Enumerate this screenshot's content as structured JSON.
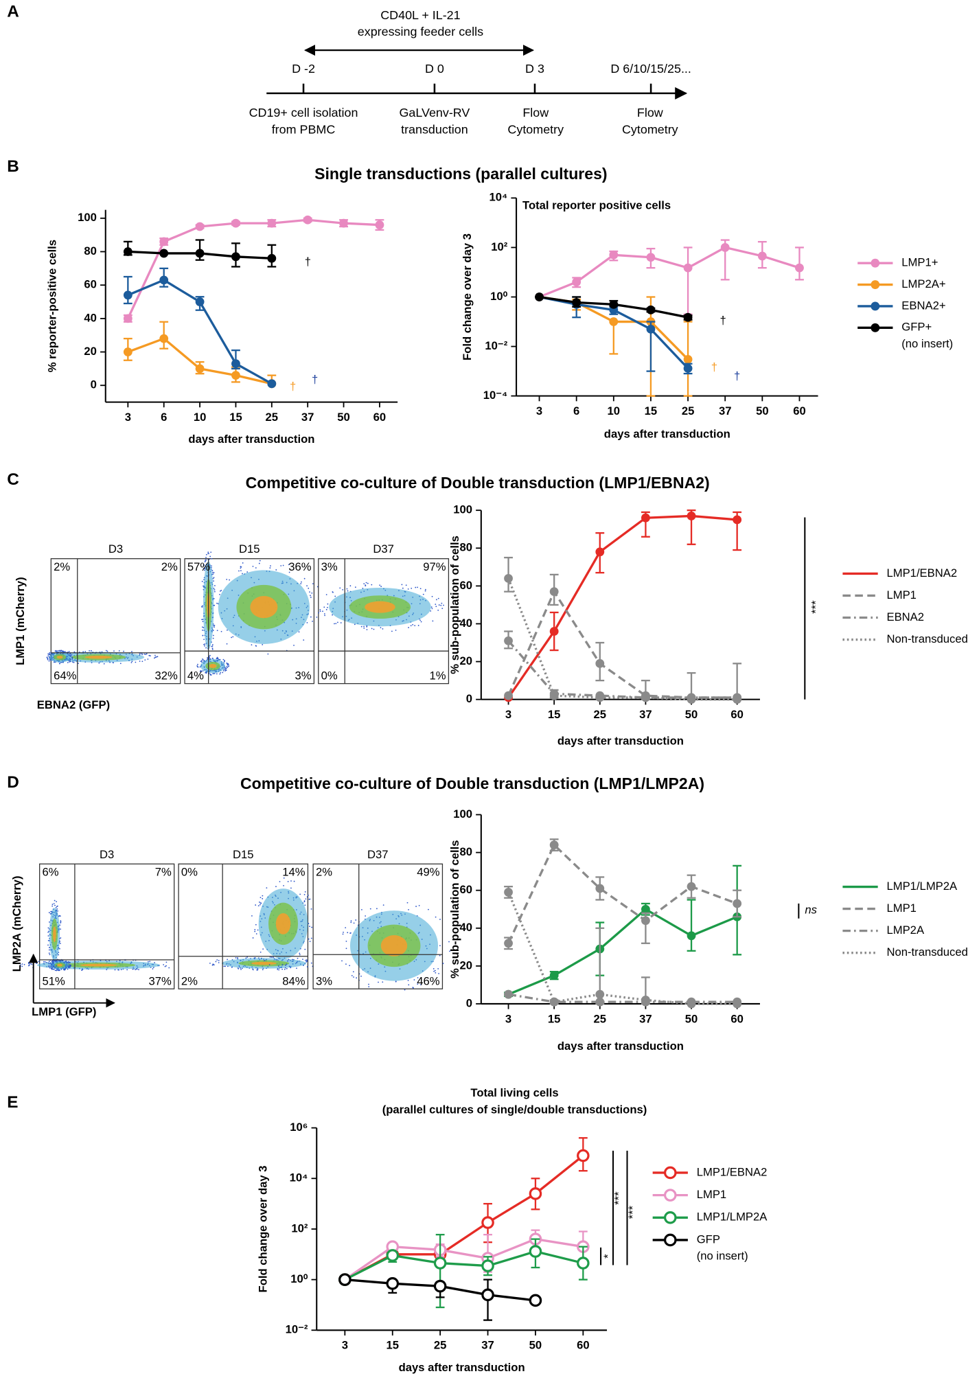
{
  "panel_labels": [
    "A",
    "B",
    "C",
    "D",
    "E"
  ],
  "timeline": {
    "feeder": [
      "CD40L + IL-21",
      "expressing feeder cells"
    ],
    "points": [
      {
        "day": "D -2",
        "event": [
          "CD19+ cell isolation",
          "from PBMC"
        ]
      },
      {
        "day": "D 0",
        "event": [
          "GaLVenv-RV",
          "transduction"
        ]
      },
      {
        "day": "D 3",
        "event": [
          "Flow",
          "Cytometry"
        ]
      },
      {
        "day": "D 6/10/15/25...",
        "event": [
          "Flow",
          "Cytometry"
        ]
      }
    ]
  },
  "panel_titles": [
    "Single transductions (parallel cultures)",
    "Competitive co-culture of Double transduction (LMP1/EBNA2)",
    "Competitive co-culture of Double transduction (LMP1/LMP2A)"
  ],
  "flow": [
    {
      "y_label": "LMP1 (mCherry)",
      "x_label": "EBNA2 (GFP)",
      "plots": [
        {
          "label": "D3",
          "quadrants": [
            "2%",
            "2%",
            "64%",
            "32%"
          ]
        },
        {
          "label": "D15",
          "quadrants": [
            "57%",
            "36%",
            "4%",
            "3%"
          ]
        },
        {
          "label": "D37",
          "quadrants": [
            "3%",
            "97%",
            "0%",
            "1%"
          ]
        }
      ]
    },
    {
      "y_label": "LMP2A (mCherry)",
      "x_label": "LMP1 (GFP)",
      "plots": [
        {
          "label": "D3",
          "quadrants": [
            "6%",
            "7%",
            "51%",
            "37%"
          ]
        },
        {
          "label": "D15",
          "quadrants": [
            "0%",
            "14%",
            "2%",
            "84%"
          ]
        },
        {
          "label": "D37",
          "quadrants": [
            "2%",
            "49%",
            "3%",
            "46%"
          ]
        }
      ]
    }
  ],
  "chart_data": [
    {
      "type": "line",
      "xlabel": "days after transduction",
      "ylabel": "% reporter-positive cells",
      "categories": [
        "3",
        "6",
        "10",
        "15",
        "25",
        "37",
        "50",
        "60"
      ],
      "ylim": [
        -10,
        105
      ],
      "yticks": [
        0,
        20,
        40,
        60,
        80,
        100
      ],
      "log_y": false,
      "marker": "filled",
      "series": [
        {
          "color": "#e889c0",
          "dash": "solid",
          "values": [
            40,
            86,
            95,
            97,
            97,
            99,
            97,
            96
          ],
          "lower": [
            38,
            84,
            94,
            96,
            95,
            98,
            95,
            93
          ],
          "upper": [
            42,
            88,
            96,
            98,
            99,
            100,
            99,
            99
          ]
        },
        {
          "color": "#f59a23",
          "dash": "solid",
          "values": [
            20,
            28,
            10,
            6,
            1,
            null,
            null,
            null
          ],
          "lower": [
            15,
            22,
            7,
            2,
            null,
            null,
            null,
            null
          ],
          "upper": [
            28,
            38,
            14,
            11,
            6,
            null,
            null,
            null
          ]
        },
        {
          "color": "#1c5c9c",
          "dash": "solid",
          "values": [
            54,
            63,
            50,
            13,
            1,
            null,
            null,
            null
          ],
          "lower": [
            49,
            59,
            45,
            10,
            null,
            null,
            null,
            null
          ],
          "upper": [
            65,
            70,
            53,
            21,
            null,
            null,
            null,
            null
          ]
        },
        {
          "color": "#000000",
          "dash": "solid",
          "values": [
            80,
            79,
            79,
            77,
            76,
            null,
            null,
            null
          ],
          "lower": [
            78,
            null,
            75,
            71,
            71,
            null,
            null,
            null
          ],
          "upper": [
            86,
            null,
            87,
            85,
            84,
            null,
            null,
            null
          ]
        }
      ],
      "annotations": [
        {
          "text": "†",
          "color": "#000000"
        },
        {
          "text": "†",
          "color": "#f59a23"
        },
        {
          "text": "†",
          "color": "#1c3f9c"
        }
      ]
    },
    {
      "type": "line",
      "title": "Total reporter positive cells",
      "xlabel": "days after transduction",
      "ylabel": "Fold change over day 3",
      "categories": [
        "3",
        "6",
        "10",
        "15",
        "25",
        "37",
        "50",
        "60"
      ],
      "ylim": [
        0.0001,
        10000
      ],
      "log_y": true,
      "marker": "filled",
      "legend": "right",
      "yticks": [
        {
          "value": 0.0001,
          "label": "10⁻⁴"
        },
        {
          "value": 0.01,
          "label": "10⁻²"
        },
        {
          "value": 1,
          "label": "10⁰"
        },
        {
          "value": 100,
          "label": "10²"
        },
        {
          "value": 10000,
          "label": "10⁴"
        }
      ],
      "series": [
        {
          "name": "LMP1+",
          "color": "#e889c0",
          "dash": "solid",
          "values": [
            1,
            4,
            50,
            40,
            15,
            100,
            45,
            15
          ],
          "lower": [
            null,
            2.5,
            30,
            15,
            0.2,
            5,
            15,
            5
          ],
          "upper": [
            null,
            6,
            70,
            90,
            100,
            200,
            170,
            100
          ]
        },
        {
          "name": "LMP2A+",
          "color": "#f59a23",
          "dash": "solid",
          "values": [
            1,
            0.6,
            0.1,
            0.1,
            0.003,
            null,
            null,
            null
          ],
          "lower": [
            null,
            0.3,
            0.005,
            0.0001,
            0.0001,
            null,
            null,
            null
          ],
          "upper": [
            null,
            0.8,
            0.1,
            1,
            0.1,
            null,
            null,
            null
          ]
        },
        {
          "name": "EBNA2+",
          "color": "#1c5c9c",
          "dash": "solid",
          "values": [
            1,
            0.5,
            0.3,
            0.05,
            0.0013,
            null,
            null,
            null
          ],
          "lower": [
            null,
            0.15,
            0.2,
            0.001,
            0.0008,
            null,
            null,
            null
          ],
          "upper": [
            null,
            1,
            0.4,
            0.1,
            0.002,
            null,
            null,
            null
          ]
        },
        {
          "name": "GFP+",
          "note": "(no insert)",
          "color": "#000000",
          "dash": "solid",
          "values": [
            1,
            0.6,
            0.5,
            0.3,
            0.15,
            null,
            null,
            null
          ],
          "lower": [
            null,
            0.4,
            0.45,
            0.25,
            0.12,
            null,
            null,
            null
          ],
          "upper": [
            null,
            1,
            0.7,
            0.35,
            0.18,
            null,
            null,
            null
          ]
        }
      ],
      "annotations": [
        {
          "text": "†",
          "color": "#000000"
        },
        {
          "text": "†",
          "color": "#f59a23"
        },
        {
          "text": "†",
          "color": "#1c3f9c"
        }
      ]
    },
    {
      "type": "line",
      "xlabel": "days after transduction",
      "ylabel": "% sub-population of cells",
      "categories": [
        "3",
        "15",
        "25",
        "37",
        "50",
        "60"
      ],
      "ylim": [
        0,
        100
      ],
      "yticks": [
        0,
        20,
        40,
        60,
        80,
        100
      ],
      "log_y": false,
      "marker": "filled",
      "legend": "right",
      "series": [
        {
          "name": "LMP1/EBNA2",
          "color": "#e52b25",
          "dash": "solid",
          "values": [
            1,
            36,
            78,
            96,
            97,
            95
          ],
          "lower": [
            null,
            26,
            67,
            86,
            82,
            79
          ],
          "upper": [
            null,
            46,
            88,
            99,
            100,
            99
          ]
        },
        {
          "name": "LMP1",
          "color": "#8a8a8a",
          "dash": "dashed",
          "values": [
            2,
            57,
            19,
            2,
            1,
            1
          ],
          "lower": [
            null,
            50,
            10,
            0,
            0,
            0
          ],
          "upper": [
            null,
            66,
            30,
            10,
            14,
            19
          ]
        },
        {
          "name": "EBNA2",
          "color": "#8a8a8a",
          "dash": "dashdot",
          "values": [
            31,
            3,
            2,
            1,
            1,
            1
          ],
          "lower": [
            27,
            1,
            null,
            null,
            null,
            null
          ],
          "upper": [
            36,
            5,
            null,
            null,
            null,
            null
          ]
        },
        {
          "name": "Non-transduced",
          "color": "#8a8a8a",
          "dash": "dotted",
          "values": [
            64,
            2,
            1,
            1,
            0,
            0
          ],
          "lower": [
            57,
            null,
            null,
            null,
            null,
            null
          ],
          "upper": [
            75,
            null,
            null,
            null,
            null,
            null
          ]
        }
      ],
      "annotations": [
        {
          "text": "***",
          "color": "#000000"
        }
      ]
    },
    {
      "type": "line",
      "xlabel": "days after transduction",
      "ylabel": "% sub-population of cells",
      "categories": [
        "3",
        "15",
        "25",
        "37",
        "50",
        "60"
      ],
      "ylim": [
        0,
        100
      ],
      "yticks": [
        0,
        20,
        40,
        60,
        80,
        100
      ],
      "log_y": false,
      "marker": "filled",
      "legend": "right",
      "series": [
        {
          "name": "LMP1/LMP2A",
          "color": "#1c9a48",
          "dash": "solid",
          "values": [
            5,
            15,
            29,
            50,
            36,
            46
          ],
          "lower": [
            4,
            13,
            15,
            47,
            28,
            26
          ],
          "upper": [
            6,
            17,
            43,
            53,
            55,
            73
          ]
        },
        {
          "name": "LMP1",
          "color": "#8a8a8a",
          "dash": "dashed",
          "values": [
            32,
            84,
            61,
            44,
            62,
            53
          ],
          "lower": [
            29,
            81,
            55,
            32,
            56,
            46
          ],
          "upper": [
            35,
            87,
            67,
            48,
            68,
            60
          ]
        },
        {
          "name": "LMP2A",
          "color": "#8a8a8a",
          "dash": "dashdot",
          "values": [
            5,
            1,
            1,
            1,
            1,
            1
          ],
          "lower": [
            null,
            null,
            null,
            null,
            null,
            null
          ],
          "upper": [
            null,
            null,
            null,
            null,
            null,
            null
          ]
        },
        {
          "name": "Non-transduced",
          "color": "#8a8a8a",
          "dash": "dotted",
          "values": [
            59,
            1,
            5,
            2,
            0,
            0
          ],
          "lower": [
            56,
            0,
            0,
            0,
            null,
            null
          ],
          "upper": [
            62,
            2,
            40,
            14,
            null,
            null
          ]
        }
      ],
      "annotations": [
        {
          "text": "ns",
          "color": "#000000"
        }
      ]
    },
    {
      "type": "line",
      "title": "Total living cells",
      "subtitle": "(parallel cultures of single/double transductions)",
      "xlabel": "days after transduction",
      "ylabel": "Fold change over day 3",
      "categories": [
        "3",
        "15",
        "25",
        "37",
        "50",
        "60"
      ],
      "ylim": [
        0.01,
        1000000
      ],
      "log_y": true,
      "marker": "open",
      "legend": "right",
      "yticks": [
        {
          "value": 0.01,
          "label": "10⁻²"
        },
        {
          "value": 1,
          "label": "10⁰"
        },
        {
          "value": 100,
          "label": "10²"
        },
        {
          "value": 10000,
          "label": "10⁴"
        },
        {
          "value": 1000000,
          "label": "10⁶"
        }
      ],
      "series": [
        {
          "name": "LMP1/EBNA2",
          "color": "#e52b25",
          "dash": "solid",
          "values": [
            1,
            10,
            10,
            180,
            2500,
            80000
          ],
          "lower": [
            null,
            null,
            null,
            30,
            600,
            20000
          ],
          "upper": [
            null,
            null,
            null,
            1000,
            10000,
            400000
          ]
        },
        {
          "name": "LMP1",
          "color": "#e893c4",
          "dash": "solid",
          "values": [
            1,
            20,
            15,
            7,
            40,
            20
          ],
          "lower": [
            null,
            12,
            8,
            2,
            15,
            5
          ],
          "upper": [
            null,
            25,
            25,
            60,
            90,
            80
          ]
        },
        {
          "name": "LMP1/LMP2A",
          "color": "#1e9c4a",
          "dash": "solid",
          "values": [
            1,
            9,
            4.5,
            3.5,
            13,
            4.5
          ],
          "lower": [
            null,
            5,
            0.08,
            1.5,
            3,
            1
          ],
          "upper": [
            null,
            12,
            60,
            8,
            40,
            20
          ]
        },
        {
          "name": "GFP",
          "note": "(no insert)",
          "color": "#000000",
          "dash": "solid",
          "values": [
            1,
            0.7,
            0.55,
            0.25,
            0.15,
            null
          ],
          "lower": [
            null,
            0.3,
            0.2,
            0.025,
            null,
            null
          ],
          "upper": [
            null,
            1,
            0.8,
            1,
            null,
            null
          ]
        }
      ],
      "annotations": [
        {
          "text": "***",
          "color": "#000000"
        },
        {
          "text": "***",
          "color": "#000000"
        },
        {
          "text": "*",
          "color": "#000000"
        }
      ]
    }
  ]
}
